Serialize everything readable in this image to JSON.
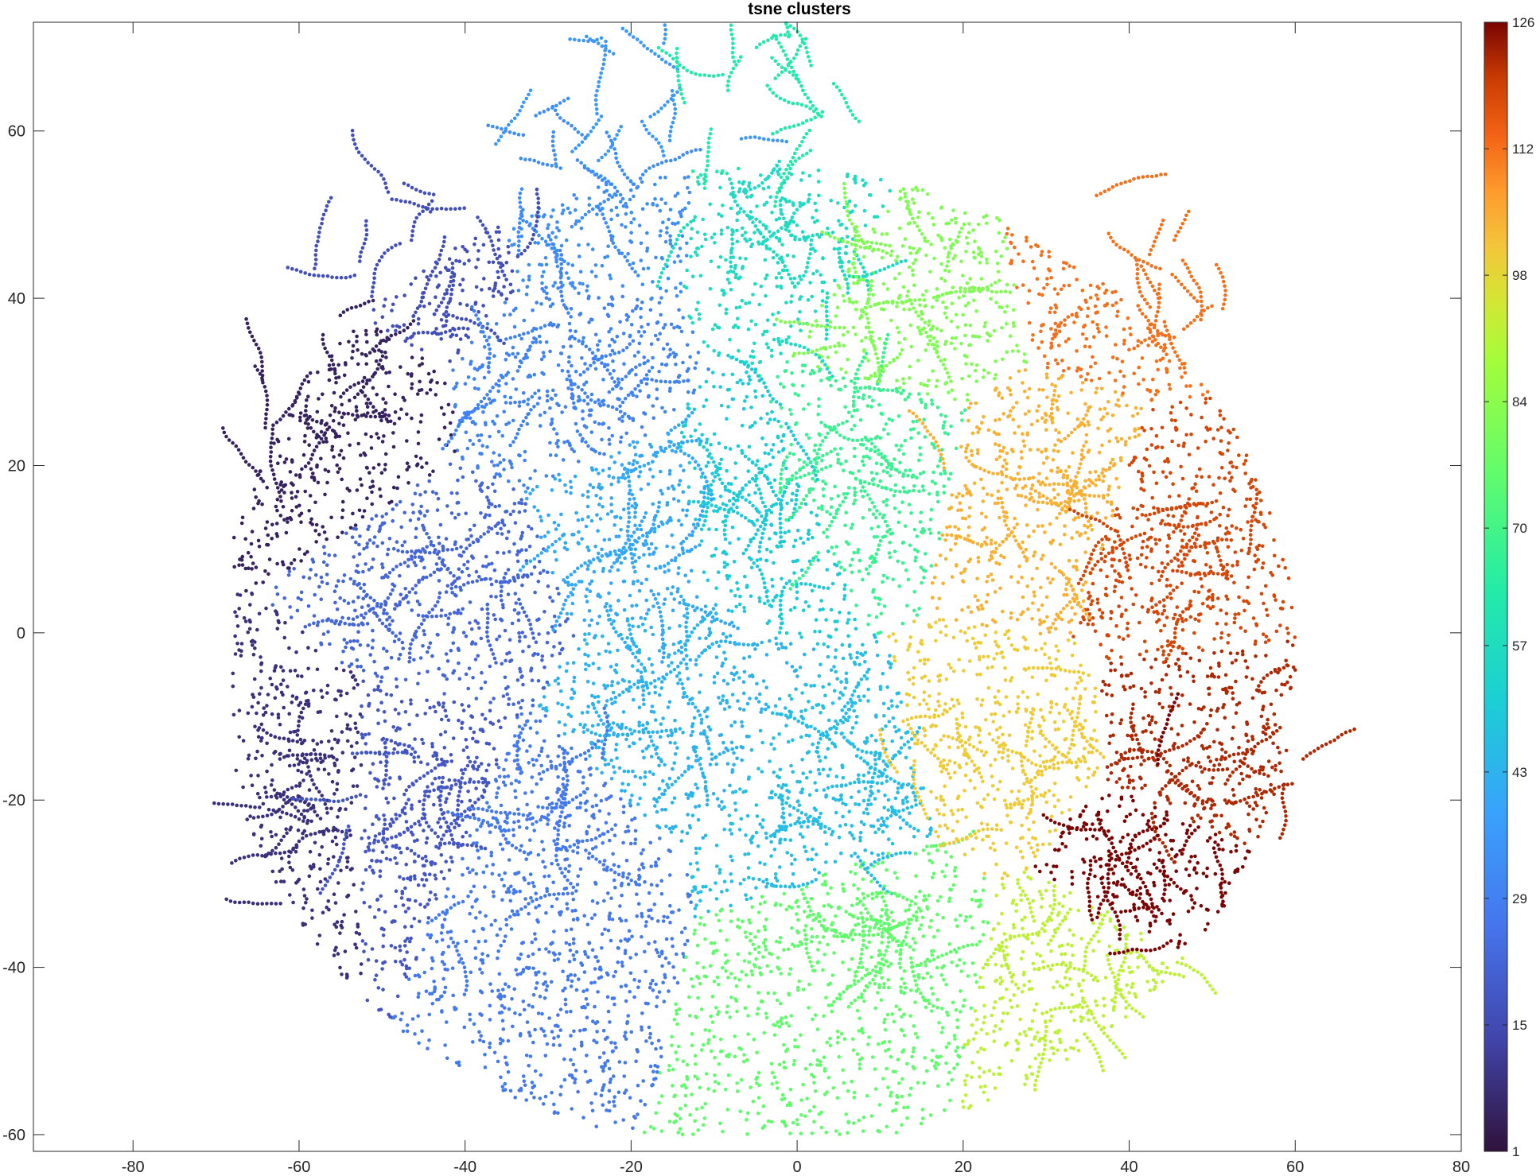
{
  "chart_data": {
    "type": "scatter",
    "title": "tsne clusters",
    "xlabel": "",
    "ylabel": "",
    "xlim": [
      -92,
      80
    ],
    "ylim": [
      -62,
      73
    ],
    "x_ticks": [
      -80,
      -60,
      -40,
      -20,
      0,
      20,
      40,
      60,
      80
    ],
    "y_ticks": [
      -60,
      -40,
      -20,
      0,
      20,
      40,
      60
    ],
    "grid": false,
    "colormap": "turbo",
    "colorbar": {
      "range": [
        1,
        126
      ],
      "ticks": [
        1,
        15,
        29,
        43,
        57,
        70,
        84,
        98,
        112,
        126
      ],
      "tick_labels": [
        "1",
        "15",
        "29",
        "43",
        "57",
        "70",
        "84",
        "98",
        "112",
        "126"
      ]
    },
    "cluster_centers": [
      {
        "cluster": 5,
        "x": -55,
        "y": 28
      },
      {
        "cluster": 8,
        "x": -60,
        "y": -20
      },
      {
        "cluster": 16,
        "x": -46,
        "y": 45
      },
      {
        "cluster": 18,
        "x": -45,
        "y": -20
      },
      {
        "cluster": 22,
        "x": -40,
        "y": 5
      },
      {
        "cluster": 27,
        "x": -33,
        "y": -25
      },
      {
        "cluster": 30,
        "x": -28,
        "y": 30
      },
      {
        "cluster": 33,
        "x": -25,
        "y": 52
      },
      {
        "cluster": 36,
        "x": -20,
        "y": 66
      },
      {
        "cluster": 40,
        "x": -20,
        "y": 12
      },
      {
        "cluster": 43,
        "x": -15,
        "y": -8
      },
      {
        "cluster": 46,
        "x": 5,
        "y": -20
      },
      {
        "cluster": 50,
        "x": -5,
        "y": 15
      },
      {
        "cluster": 56,
        "x": 0,
        "y": 48
      },
      {
        "cluster": 62,
        "x": -5,
        "y": 65
      },
      {
        "cluster": 68,
        "x": 7,
        "y": 20
      },
      {
        "cluster": 76,
        "x": 10,
        "y": -35
      },
      {
        "cluster": 82,
        "x": 12,
        "y": 40
      },
      {
        "cluster": 92,
        "x": 35,
        "y": -40
      },
      {
        "cluster": 100,
        "x": 25,
        "y": -15
      },
      {
        "cluster": 104,
        "x": 30,
        "y": 15
      },
      {
        "cluster": 112,
        "x": 40,
        "y": 45
      },
      {
        "cluster": 118,
        "x": 45,
        "y": 10
      },
      {
        "cluster": 122,
        "x": 48,
        "y": -15
      },
      {
        "cluster": 126,
        "x": 42,
        "y": -28
      }
    ]
  }
}
